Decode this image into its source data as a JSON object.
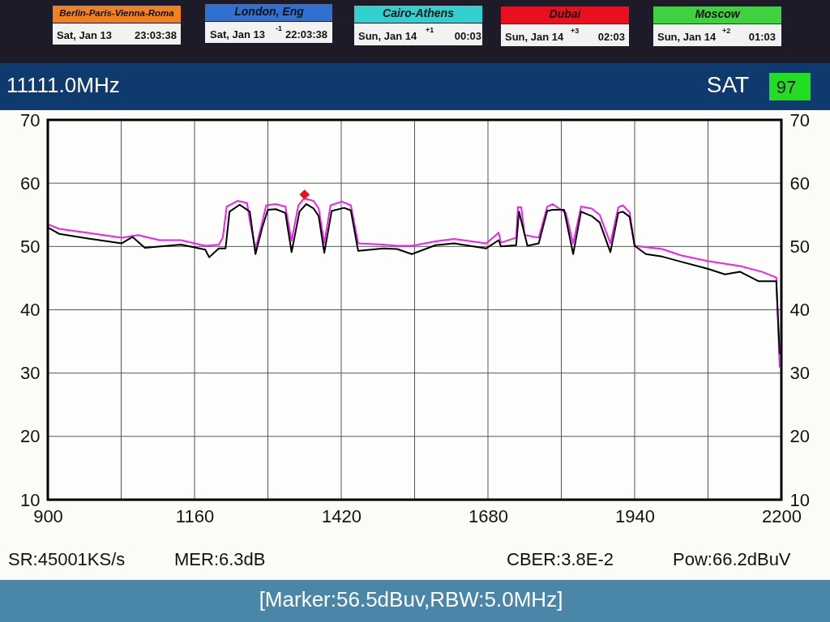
{
  "chart_data": {
    "type": "line",
    "title": "11111.0MHz",
    "xlim": [
      900,
      2200
    ],
    "xticks": [
      900,
      {
        "value": 1030,
        "label": null
      },
      1160,
      {
        "value": 1290,
        "label": null
      },
      1420,
      {
        "value": 1550,
        "label": null
      },
      1680,
      {
        "value": 1810,
        "label": null
      },
      1940,
      {
        "value": 2070,
        "label": null
      },
      2200
    ],
    "ylim": [
      10,
      70
    ],
    "yticks": [
      10,
      20,
      30,
      40,
      50,
      60,
      70
    ],
    "y2lim": [
      10,
      70
    ],
    "y2ticks": [
      10,
      20,
      30,
      40,
      50,
      60,
      70
    ],
    "grid": true,
    "line_style": "solid",
    "series": [
      {
        "color": "#ee22ee",
        "x": [
          900,
          920,
          969,
          1031,
          1060,
          1098,
          1136,
          1179,
          1203,
          1210,
          1217,
          1236,
          1253,
          1258,
          1268,
          1278,
          1287,
          1304,
          1321,
          1332,
          1344,
          1354,
          1371,
          1380,
          1390,
          1401,
          1421,
          1437,
          1450,
          1495,
          1519,
          1544,
          1587,
          1620,
          1677,
          1699,
          1703,
          1730,
          1733,
          1739,
          1745,
          1770,
          1785,
          1795,
          1806,
          1818,
          1831,
          1845,
          1864,
          1878,
          1897,
          1911,
          1919,
          1931,
          1940,
          1989,
          2022,
          2069,
          2127,
          2166,
          2191,
          2197
        ],
        "values": [
          53.5,
          52.8,
          52.2,
          51.4,
          51.8,
          51.0,
          51.0,
          50.1,
          50.3,
          51.4,
          56.3,
          57.2,
          56.9,
          54.0,
          49.6,
          53.1,
          56.5,
          56.7,
          56.3,
          50.9,
          56.5,
          57.6,
          57.2,
          56.0,
          50.5,
          56.5,
          57.1,
          56.5,
          50.5,
          50.3,
          50.1,
          50.1,
          50.8,
          51.2,
          50.5,
          52.2,
          50.6,
          51.4,
          56.2,
          56.2,
          51.8,
          51.4,
          56.3,
          56.7,
          56.0,
          55.3,
          50.5,
          56.3,
          56.0,
          55.0,
          50.5,
          56.2,
          56.5,
          55.4,
          50.1,
          49.6,
          48.6,
          47.7,
          46.9,
          46.0,
          45.1,
          30.9
        ]
      },
      {
        "color": "#000000",
        "x": [
          900,
          920,
          969,
          1031,
          1050,
          1072,
          1136,
          1179,
          1186,
          1203,
          1215,
          1222,
          1240,
          1258,
          1268,
          1280,
          1290,
          1304,
          1321,
          1332,
          1346,
          1358,
          1371,
          1380,
          1390,
          1403,
          1425,
          1437,
          1450,
          1495,
          1519,
          1545,
          1587,
          1620,
          1677,
          1699,
          1703,
          1730,
          1735,
          1742,
          1750,
          1770,
          1785,
          1795,
          1815,
          1831,
          1845,
          1864,
          1878,
          1897,
          1911,
          1919,
          1931,
          1940,
          1960,
          1989,
          2022,
          2069,
          2100,
          2127,
          2160,
          2191,
          2197
        ],
        "values": [
          53.0,
          52.0,
          51.3,
          50.5,
          51.5,
          49.8,
          50.3,
          49.5,
          48.3,
          49.7,
          49.7,
          55.5,
          56.6,
          55.5,
          48.8,
          53.0,
          55.8,
          55.9,
          55.3,
          49.1,
          55.5,
          56.7,
          56.0,
          54.8,
          49.0,
          55.6,
          56.1,
          55.7,
          49.3,
          49.7,
          49.6,
          48.8,
          50.2,
          50.5,
          49.7,
          51.0,
          50.0,
          50.2,
          55.5,
          53.0,
          50.1,
          50.5,
          55.6,
          55.8,
          55.8,
          48.8,
          55.5,
          54.8,
          53.8,
          49.1,
          55.3,
          55.5,
          54.7,
          50.1,
          48.8,
          48.4,
          47.6,
          46.5,
          45.6,
          46.0,
          44.5,
          44.5,
          33.0
        ]
      },
      {
        "type": "scatter",
        "marker": "diamond",
        "color": "#e8141c",
        "x": [
          1355
        ],
        "values": [
          58.2
        ]
      }
    ],
    "annotations": [
      "Berlin-Paris-Vienna-Roma",
      "Sat, Jan 13",
      "23:03:38",
      "London, Eng",
      "Sat, Jan 13",
      "-1",
      "22:03:38",
      "Cairo-Athens",
      "Sun, Jan 14",
      "+1",
      "00:03",
      "Dubai",
      "Sun, Jan 14",
      "+3",
      "02:03",
      "Moscow",
      "Sun, Jan 14",
      "+2",
      "01:03",
      "SAT",
      "97",
      "SR:45001KS/s",
      "MER:6.3dB",
      "CBER:3.8E-2",
      "Pow:66.2dBuV",
      "[Marker:56.5dBuv,RBW:5.0MHz]"
    ]
  }
}
